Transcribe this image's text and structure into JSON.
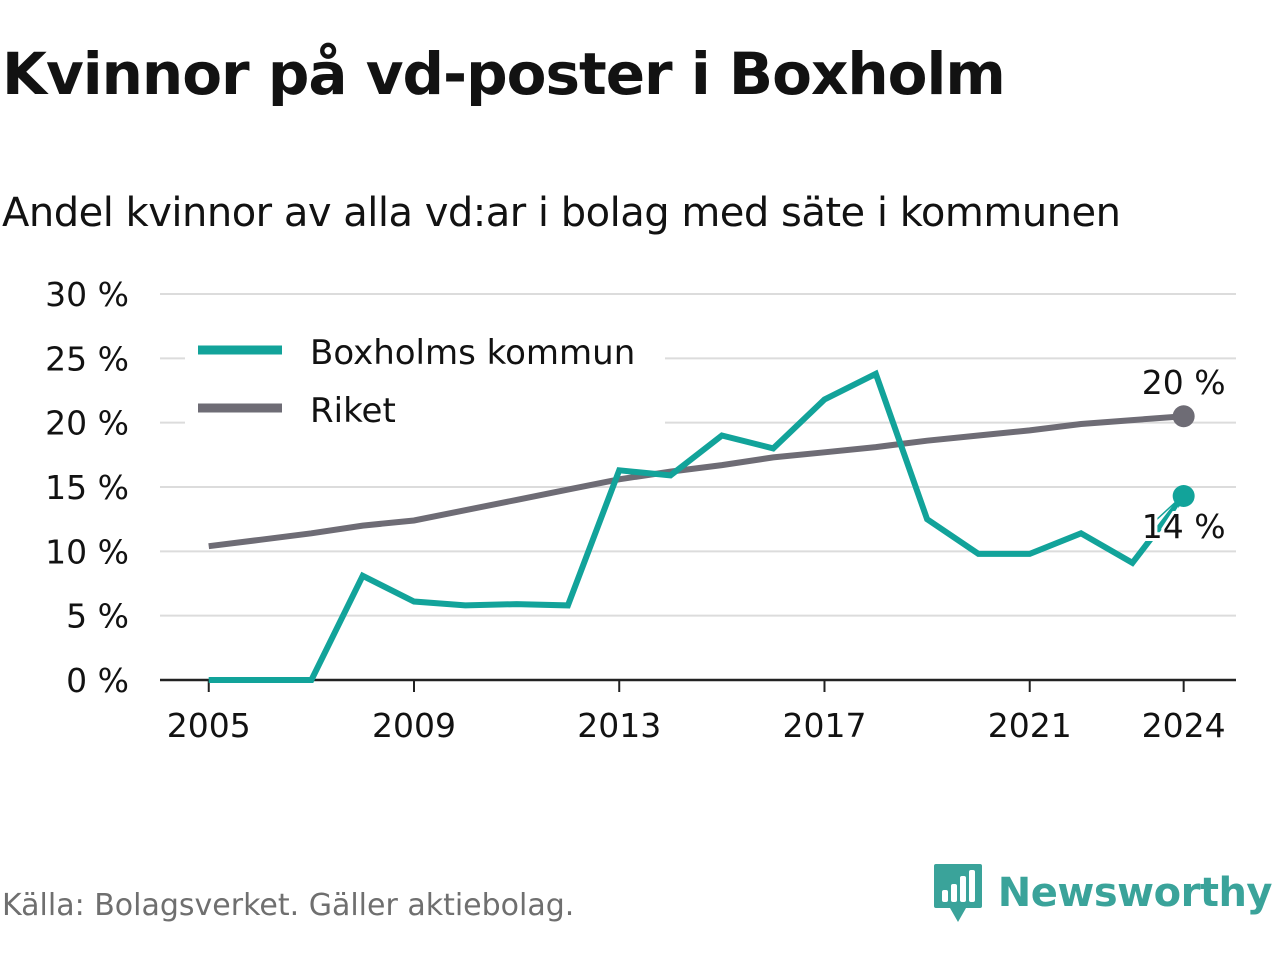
{
  "title": "Kvinnor på vd-poster i Boxholm",
  "subtitle": "Andel kvinnor av alla vd:ar i bolag med säte i kommunen",
  "source": "Källa: Bolagsverket. Gäller aktiebolag.",
  "brand": {
    "name": "Newsworthy",
    "logo_icon": "newsworthy-logo-icon"
  },
  "colors": {
    "boxholm": "#12a39a",
    "riket": "#6e6c75",
    "grid": "#dcdcdc",
    "axis": "#222222"
  },
  "chart_data": {
    "type": "line",
    "x": [
      2005,
      2006,
      2007,
      2008,
      2009,
      2010,
      2011,
      2012,
      2013,
      2014,
      2015,
      2016,
      2017,
      2018,
      2019,
      2020,
      2021,
      2022,
      2023,
      2024
    ],
    "x_ticks": [
      2005,
      2009,
      2013,
      2017,
      2021,
      2024
    ],
    "x_tick_labels": [
      "2005",
      "2009",
      "2013",
      "2017",
      "2021",
      "2024"
    ],
    "y_ticks": [
      0,
      5,
      10,
      15,
      20,
      25,
      30
    ],
    "y_tick_labels": [
      "0 %",
      "5 %",
      "10 %",
      "15 %",
      "20 %",
      "25 %",
      "30 %"
    ],
    "ylim": [
      0,
      30
    ],
    "grid": true,
    "legend": "top-left",
    "series": [
      {
        "name": "Boxholms kommun",
        "color": "#12a39a",
        "values": [
          0,
          0,
          0,
          8.1,
          6.1,
          5.8,
          5.9,
          5.8,
          16.3,
          15.9,
          19.0,
          18.0,
          21.8,
          23.8,
          12.5,
          9.8,
          9.8,
          11.4,
          9.1,
          14.3
        ],
        "end_label": "14 %"
      },
      {
        "name": "Riket",
        "color": "#6e6c75",
        "values": [
          10.4,
          10.9,
          11.4,
          12.0,
          12.4,
          13.2,
          14.0,
          14.8,
          15.6,
          16.2,
          16.7,
          17.3,
          17.7,
          18.1,
          18.6,
          19.0,
          19.4,
          19.9,
          20.2,
          20.5
        ],
        "end_label": "20 %"
      }
    ]
  }
}
